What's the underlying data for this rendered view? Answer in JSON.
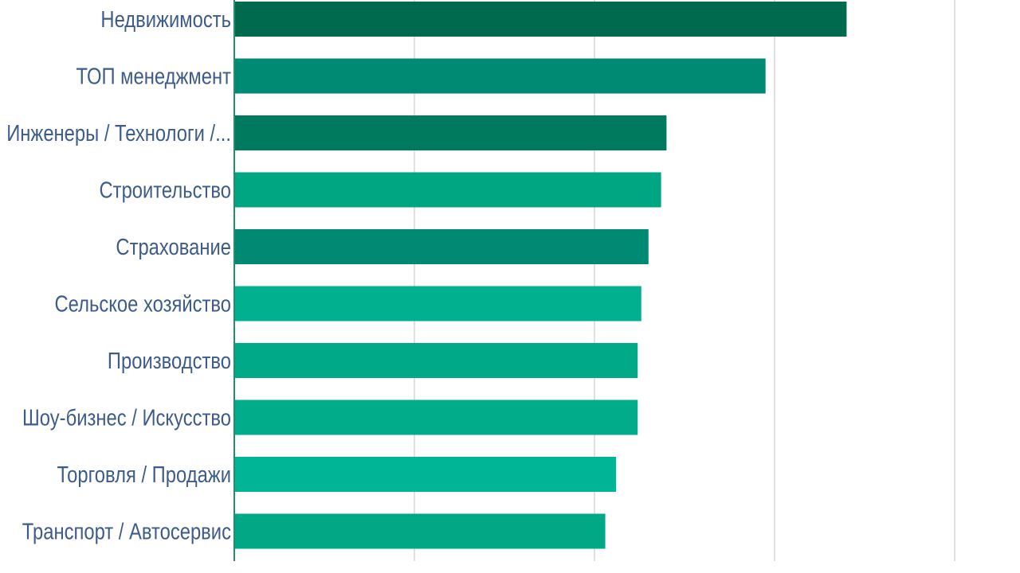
{
  "chart_data": {
    "type": "bar",
    "orientation": "horizontal",
    "categories": [
      "Недвижимость",
      "ТОП менеджмент",
      "Инженеры / Технологи /...",
      "Строительство",
      "Страхование",
      "Сельское хозяйство",
      "Производство",
      "Шоу-бизнес / Искусство",
      "Торговля / Продажи",
      "Транспорт / Автосервис"
    ],
    "values": [
      3.4,
      2.95,
      2.4,
      2.37,
      2.3,
      2.26,
      2.24,
      2.24,
      2.12,
      2.06
    ],
    "xlim": [
      0,
      4
    ],
    "gridlines": [
      0,
      1,
      2,
      3,
      4
    ],
    "grid": true,
    "legend": "none",
    "title": "",
    "xlabel": "",
    "ylabel": "",
    "colors": [
      "#006a4f",
      "#008a73",
      "#007a5e",
      "#00a582",
      "#008a73",
      "#00b08e",
      "#00aa88",
      "#00ac8a",
      "#00b595",
      "#00a886"
    ]
  }
}
